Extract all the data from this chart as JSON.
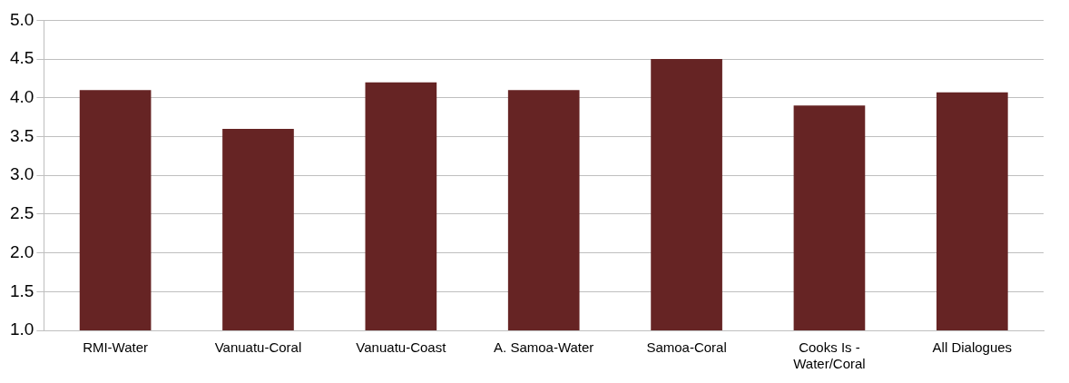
{
  "chart_data": {
    "type": "bar",
    "categories": [
      "RMI-Water",
      "Vanuatu-Coral",
      "Vanuatu-Coast",
      "A. Samoa-Water",
      "Samoa-Coral",
      "Cooks Is - Water/Coral",
      "All Dialogues"
    ],
    "values": [
      4.1,
      3.6,
      4.2,
      4.1,
      4.5,
      3.9,
      4.07
    ],
    "color": "#662424",
    "ylim": [
      1,
      5
    ],
    "yticks": [
      {
        "value": 1,
        "label": "1.0"
      },
      {
        "value": 1.5,
        "label": "1.5"
      },
      {
        "value": 2,
        "label": "2.0"
      },
      {
        "value": 2.5,
        "label": "2.5"
      },
      {
        "value": 3,
        "label": "3.0"
      },
      {
        "value": 3.5,
        "label": "3.5"
      },
      {
        "value": 4,
        "label": "4.0"
      },
      {
        "value": 4.5,
        "label": "4.5"
      },
      {
        "value": 5,
        "label": "5.0"
      }
    ],
    "grid": "y",
    "legend": false
  }
}
